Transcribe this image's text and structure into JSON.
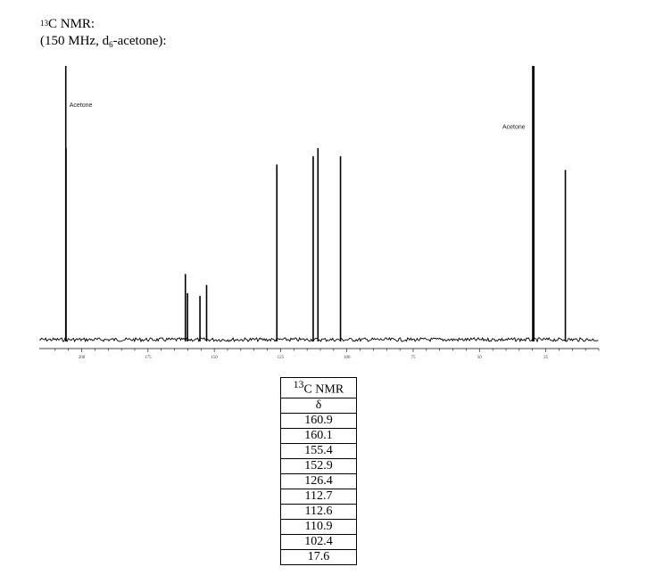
{
  "header": {
    "title_isotope": "13",
    "title_rest": "C NMR:",
    "subtitle_open": "(150 MHz, d",
    "subtitle_sub": "6",
    "subtitle_close": "-acetone):"
  },
  "chart_data": {
    "type": "line",
    "xlim": [
      216,
      5
    ],
    "x_reversed": true,
    "x_ticks": [
      200,
      175,
      150,
      125,
      100,
      75,
      50,
      25
    ],
    "peaks": [
      {
        "x": 206.0,
        "height": 1.0
      },
      {
        "x": 205.9,
        "height": 0.7
      },
      {
        "x": 160.9,
        "height": 0.24
      },
      {
        "x": 160.1,
        "height": 0.17
      },
      {
        "x": 155.4,
        "height": 0.16
      },
      {
        "x": 152.9,
        "height": 0.2
      },
      {
        "x": 126.4,
        "height": 0.64
      },
      {
        "x": 112.7,
        "height": 0.67
      },
      {
        "x": 110.9,
        "height": 0.7
      },
      {
        "x": 102.4,
        "height": 0.67
      },
      {
        "x": 29.9,
        "height": 1.0
      },
      {
        "x": 29.5,
        "height": 1.0
      },
      {
        "x": 17.6,
        "height": 0.62
      }
    ],
    "annotations": [
      {
        "text": "Acetone",
        "x": 206.0,
        "level": 0.85
      },
      {
        "text": "Acetone",
        "x": 29.9,
        "level": 0.77
      }
    ]
  },
  "table": {
    "header_isotope": "13",
    "header_rest": "C NMR",
    "column": "δ",
    "values": [
      "160.9",
      "160.1",
      "155.4",
      "152.9",
      "126.4",
      "112.7",
      "112.6",
      "110.9",
      "102.4",
      "17.6"
    ]
  }
}
